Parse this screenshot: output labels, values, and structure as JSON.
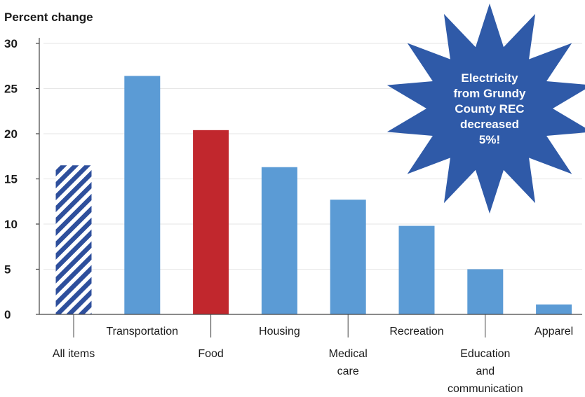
{
  "chart_data": {
    "type": "bar",
    "ylabel": "Percent change",
    "ylim": [
      0,
      30
    ],
    "yticks": [
      0,
      5,
      10,
      15,
      20,
      25,
      30
    ],
    "grid": true,
    "categories": [
      [
        "All items"
      ],
      [
        "Transportation"
      ],
      [
        "Food"
      ],
      [
        "Housing"
      ],
      [
        "Medical",
        "care"
      ],
      [
        "Recreation"
      ],
      [
        "Education",
        "and",
        "communication"
      ],
      [
        "Apparel"
      ]
    ],
    "values": [
      16.5,
      26.4,
      20.4,
      16.3,
      12.7,
      9.8,
      5.0,
      1.1
    ],
    "label_position": [
      "below",
      "above",
      "below",
      "above",
      "below",
      "above",
      "below",
      "above"
    ],
    "bar_styles": [
      "hatched",
      "solid",
      "highlight",
      "solid",
      "solid",
      "solid",
      "solid",
      "solid"
    ],
    "colors": {
      "bar": "#5b9bd5",
      "highlight": "#c1272d",
      "hatch": "#2e4f9c",
      "axis": "#444444",
      "grid": "#e6e6e6"
    }
  },
  "callout": {
    "lines": [
      "Electricity",
      "from Grundy",
      "County REC",
      "decreased",
      "5%!"
    ],
    "color": "#2f5aa8"
  }
}
